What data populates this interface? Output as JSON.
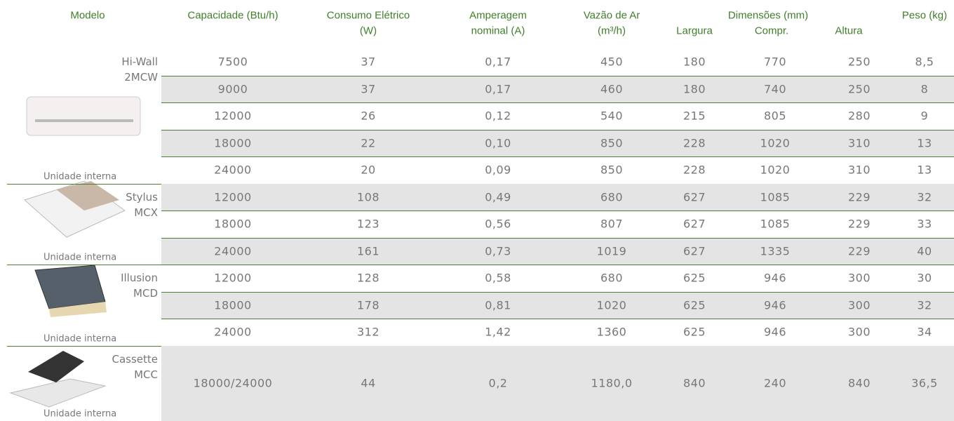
{
  "header": {
    "model": "Modelo",
    "capacity": "Capacidade (Btu/h)",
    "power": [
      "Consumo Elétrico",
      "(W)"
    ],
    "current": [
      "Amperagem",
      "nominal (A)"
    ],
    "airflow": [
      "Vazão de Ar",
      "(m³/h)"
    ],
    "dimensions": "Dimensões (mm)",
    "width": "Largura",
    "length": "Compr.",
    "height": "Altura",
    "weight": "Peso (kg)"
  },
  "groups": [
    {
      "name": [
        "Hi-Wall",
        "2MCW"
      ],
      "caption": "Unidade interna",
      "rows": [
        [
          "7500",
          "37",
          "0,17",
          "450",
          "180",
          "770",
          "250",
          "8,5"
        ],
        [
          "9000",
          "37",
          "0,17",
          "460",
          "180",
          "740",
          "250",
          "8"
        ],
        [
          "12000",
          "26",
          "0,12",
          "540",
          "215",
          "805",
          "280",
          "9"
        ],
        [
          "18000",
          "22",
          "0,10",
          "850",
          "228",
          "1020",
          "310",
          "13"
        ],
        [
          "24000",
          "20",
          "0,09",
          "850",
          "228",
          "1020",
          "310",
          "13"
        ]
      ]
    },
    {
      "name": [
        "Stylus",
        "MCX"
      ],
      "caption": "Unidade interna",
      "rows": [
        [
          "12000",
          "108",
          "0,49",
          "680",
          "627",
          "1085",
          "229",
          "32"
        ],
        [
          "18000",
          "123",
          "0,56",
          "807",
          "627",
          "1085",
          "229",
          "33"
        ],
        [
          "24000",
          "161",
          "0,73",
          "1019",
          "627",
          "1335",
          "229",
          "40"
        ]
      ]
    },
    {
      "name": [
        "Illusion",
        "MCD"
      ],
      "caption": "Unidade interna",
      "rows": [
        [
          "12000",
          "128",
          "0,58",
          "680",
          "625",
          "946",
          "300",
          "30"
        ],
        [
          "18000",
          "178",
          "0,81",
          "1020",
          "625",
          "946",
          "300",
          "32"
        ],
        [
          "24000",
          "312",
          "1,42",
          "1360",
          "625",
          "946",
          "300",
          "34"
        ]
      ]
    },
    {
      "name": [
        "Cassette",
        "MCC"
      ],
      "caption": "Unidade interna",
      "rows": [
        [
          "18000/24000",
          "44",
          "0,2",
          "1180,0",
          "840",
          "240",
          "840",
          "36,5"
        ]
      ]
    }
  ]
}
